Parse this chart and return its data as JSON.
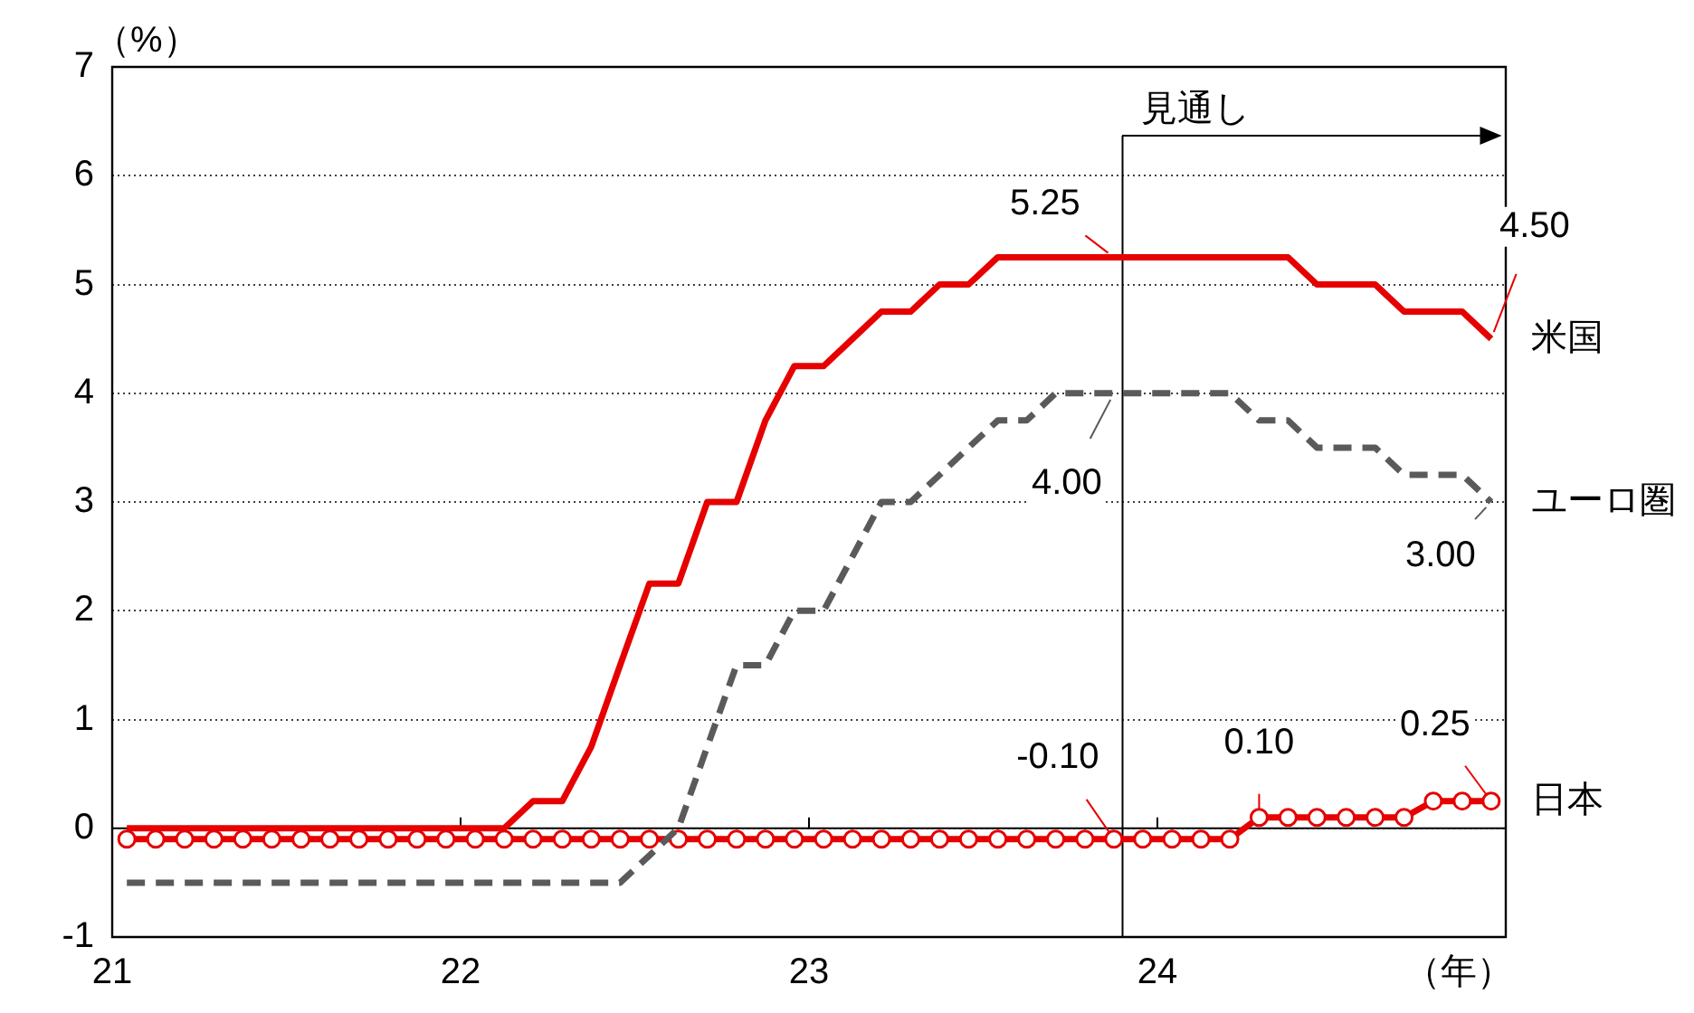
{
  "chart_data": {
    "type": "line",
    "ylabel": "（%）",
    "xlabel": "（年）",
    "x": [
      21.042,
      21.125,
      21.208,
      21.292,
      21.375,
      21.458,
      21.542,
      21.625,
      21.708,
      21.792,
      21.875,
      21.958,
      22.042,
      22.125,
      22.208,
      22.292,
      22.375,
      22.458,
      22.542,
      22.625,
      22.708,
      22.792,
      22.875,
      22.958,
      23.042,
      23.125,
      23.208,
      23.292,
      23.375,
      23.458,
      23.542,
      23.625,
      23.708,
      23.792,
      23.875,
      23.958,
      24.042,
      24.125,
      24.208,
      24.292,
      24.375,
      24.458,
      24.542,
      24.625,
      24.708,
      24.792,
      24.875,
      24.958
    ],
    "series": [
      {
        "name": "米国",
        "color": "#e60000",
        "line_style": "solid",
        "marker": "none",
        "values": [
          0,
          0,
          0,
          0,
          0,
          0,
          0,
          0,
          0,
          0,
          0,
          0,
          0,
          0,
          0.25,
          0.25,
          0.75,
          1.5,
          2.25,
          2.25,
          3,
          3,
          3.75,
          4.25,
          4.25,
          4.5,
          4.75,
          4.75,
          5,
          5,
          5.25,
          5.25,
          5.25,
          5.25,
          5.25,
          5.25,
          5.25,
          5.25,
          5.25,
          5.25,
          5.25,
          5,
          5,
          5,
          4.75,
          4.75,
          4.75,
          4.5
        ]
      },
      {
        "name": "ユーロ圏",
        "color": "#5a5a5a",
        "line_style": "dashed",
        "marker": "none",
        "values": [
          -0.5,
          -0.5,
          -0.5,
          -0.5,
          -0.5,
          -0.5,
          -0.5,
          -0.5,
          -0.5,
          -0.5,
          -0.5,
          -0.5,
          -0.5,
          -0.5,
          -0.5,
          -0.5,
          -0.5,
          -0.5,
          -0.25,
          0,
          0.75,
          1.5,
          1.5,
          2,
          2,
          2.5,
          3,
          3,
          3.25,
          3.5,
          3.75,
          3.75,
          4,
          4,
          4,
          4,
          4,
          4,
          4,
          3.75,
          3.75,
          3.5,
          3.5,
          3.5,
          3.25,
          3.25,
          3.25,
          3
        ]
      },
      {
        "name": "日本",
        "color": "#e60000",
        "line_style": "solid",
        "marker": "circle",
        "values": [
          -0.1,
          -0.1,
          -0.1,
          -0.1,
          -0.1,
          -0.1,
          -0.1,
          -0.1,
          -0.1,
          -0.1,
          -0.1,
          -0.1,
          -0.1,
          -0.1,
          -0.1,
          -0.1,
          -0.1,
          -0.1,
          -0.1,
          -0.1,
          -0.1,
          -0.1,
          -0.1,
          -0.1,
          -0.1,
          -0.1,
          -0.1,
          -0.1,
          -0.1,
          -0.1,
          -0.1,
          -0.1,
          -0.1,
          -0.1,
          -0.1,
          -0.1,
          -0.1,
          -0.1,
          -0.1,
          0.1,
          0.1,
          0.1,
          0.1,
          0.1,
          0.1,
          0.25,
          0.25,
          0.25
        ]
      }
    ],
    "xlim": [
      21,
      25
    ],
    "xticks": [
      21,
      22,
      23,
      24
    ],
    "ylim": [
      -1,
      7
    ],
    "yticks": [
      -1,
      0,
      1,
      2,
      3,
      4,
      5,
      6,
      7
    ],
    "grid": "y",
    "legend": "right",
    "ref_lines": [
      {
        "axis": "x",
        "value": 23.9,
        "label": "見通し",
        "color": "#000000"
      }
    ],
    "annotations": [
      {
        "text": "5.25",
        "x": 23.875,
        "y": 5.25
      },
      {
        "text": "4.00",
        "x": 23.875,
        "y": 4
      },
      {
        "text": "-0.10",
        "x": 23.875,
        "y": -0.1
      },
      {
        "text": "0.10",
        "x": 24.292,
        "y": 0.1
      },
      {
        "text": "0.25",
        "x": 24.958,
        "y": 0.25
      },
      {
        "text": "4.50",
        "x": 24.958,
        "y": 4.5
      },
      {
        "text": "3.00",
        "x": 24.958,
        "y": 3
      }
    ]
  }
}
